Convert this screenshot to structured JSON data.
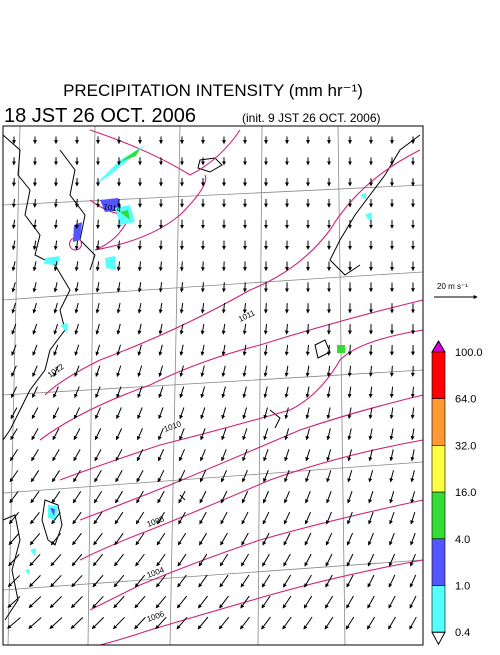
{
  "header": {
    "title": "PRECIPITATION INTENSITY (mm hr⁻¹)",
    "valid_time": "18 JST 26 OCT. 2006",
    "init_time": "(init. 9 JST 26 OCT. 2006)"
  },
  "wind_scale": {
    "label": "20 m s⁻¹"
  },
  "isobar_labels": [
    "1014",
    "1012",
    "1011",
    "1010",
    "1008",
    "1006",
    "1004"
  ],
  "color_bar": {
    "levels": [
      "100.0",
      "64.0",
      "32.0",
      "16.0",
      "4.0",
      "1.0",
      "0.4"
    ],
    "colors": [
      "#dd00dd",
      "#ff0000",
      "#ff9933",
      "#ffff44",
      "#33dd33",
      "#5555ff",
      "#55ffff",
      "#ffffff"
    ]
  }
}
